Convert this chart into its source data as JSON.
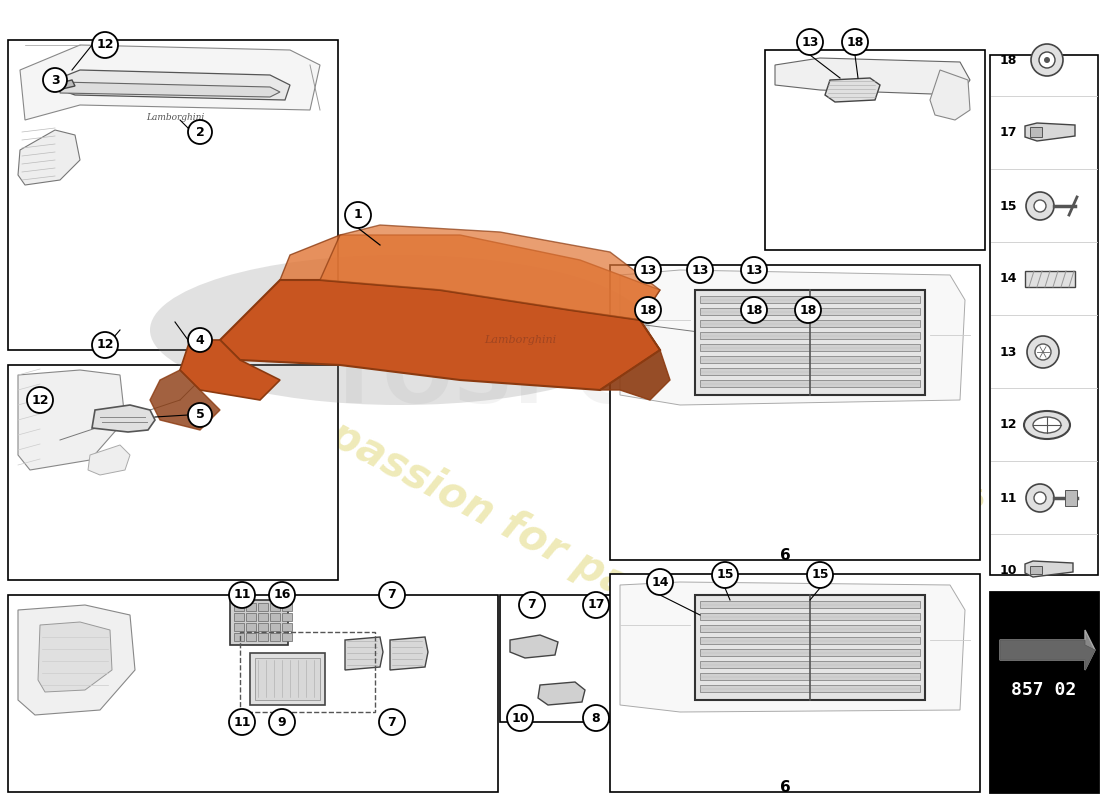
{
  "bg_color": "#ffffff",
  "orange_color": "#c85520",
  "orange_dark": "#8b3a10",
  "orange_light": "#e07535",
  "line_color": "#000000",
  "gray_light": "#f0f0f0",
  "gray_mid": "#cccccc",
  "gray_dark": "#555555",
  "watermark_yellow": "#d8cc70",
  "watermark_gray": "#cccccc",
  "part_number": "857 02",
  "legend_labels": [
    18,
    17,
    15,
    14,
    13,
    12,
    11,
    10
  ]
}
